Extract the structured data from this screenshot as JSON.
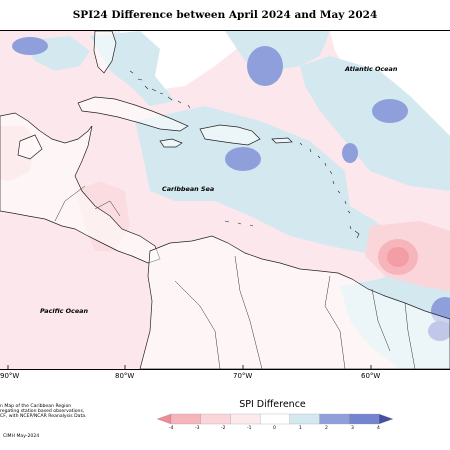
{
  "title": "SPI24 Difference between April 2024 and May 2024",
  "labels": {
    "atlantic": "Atlantic Ocean",
    "caribbean": "Caribbean Sea",
    "pacific": "Pacific Ocean"
  },
  "longitudes": [
    "90°W",
    "80°W",
    "70°W",
    "60°W"
  ],
  "footnote": {
    "line1": "n Map of the Caribbean Region",
    "line2": "regating station based observations,",
    "line3": "CF, with NCEP/NCAR Reanalysis Data."
  },
  "credit": "CIMH May-2024",
  "legend": {
    "title": "SPI Difference",
    "ticks": [
      "-4",
      "-3",
      "-2",
      "-1",
      "0",
      "1",
      "2",
      "3",
      "4"
    ],
    "colors": [
      "#f08a95",
      "#f6b4bb",
      "#fad6da",
      "#fdeaec",
      "#ffffff",
      "#d4e8f0",
      "#8f9fdc",
      "#7484cf",
      "#4450a4"
    ]
  },
  "colors": {
    "land_positive": "#fce8ec",
    "light_blue": "#d4e8f0",
    "medium_blue": "#8f9fdc",
    "pink": "#f6b4bb",
    "dark_pink": "#f08a95"
  }
}
